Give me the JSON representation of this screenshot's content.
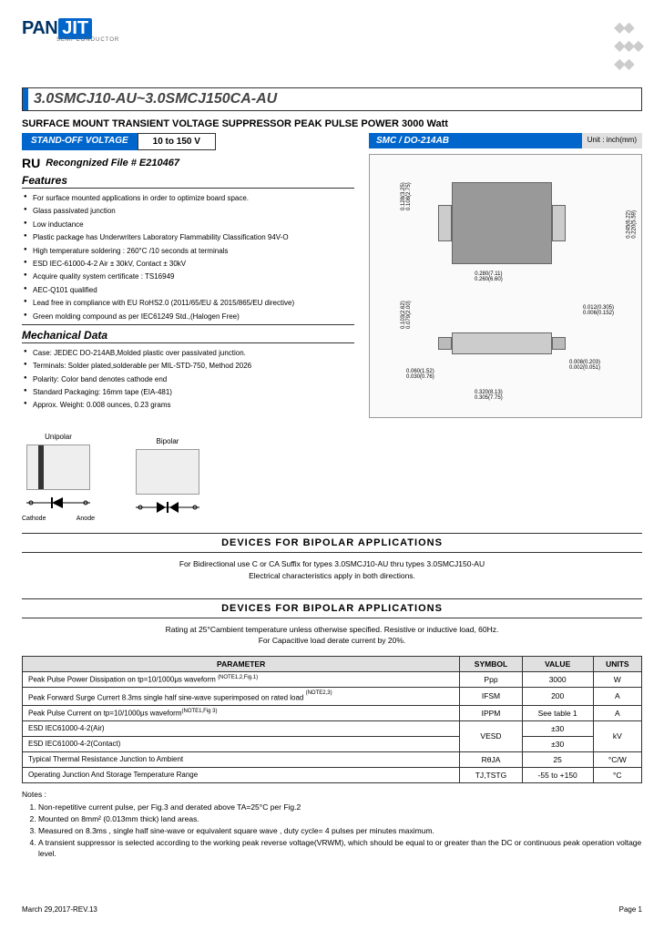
{
  "logo": {
    "pan": "PAN",
    "jit": "JIT",
    "sub": "SEMI\nCONDUCTOR"
  },
  "title": "3.0SMCJ10-AU~3.0SMCJ150CA-AU",
  "subtitle": "SURFACE MOUNT TRANSIENT VOLTAGE SUPPRESSOR PEAK PULSE POWER 3000 Watt",
  "standoff_label": "STAND-OFF VOLTAGE",
  "standoff_value": "10 to 150 V",
  "pkg_name": "SMC / DO-214AB",
  "pkg_unit": "Unit : inch(mm)",
  "recognized": "Recongnized File # E210467",
  "features_title": "Features",
  "features": [
    "For surface mounted applications in order to optimize board space.",
    "Glass passivated junction",
    "Low inductance",
    "Plastic package has Underwriters Laboratory Flammability Classification 94V-O",
    "High temperature soldering : 260°C /10 seconds at terminals",
    "ESD IEC-61000-4-2 Air ± 30kV, Contact ± 30kV",
    "Acquire quality system certificate : TS16949",
    "AEC-Q101 qualified",
    "Lead free in compliance with EU RoHS2.0 (2011/65/EU & 2015/865/EU directive)",
    "Green molding compound as per IEC61249 Std.,(Halogen Free)"
  ],
  "mechdata_title": "Mechanical Data",
  "mechdata": [
    "Case: JEDEC DO-214AB,Molded plastic over passivated junction.",
    "Terminals: Solder plated,solderable per MIL-STD-750, Method 2026",
    "Polarity: Color band denotes cathode end",
    "Standard Packaging: 16mm tape (EIA-481)",
    "Approx. Weight: 0.008 ounces, 0.23 grams"
  ],
  "polarity": {
    "unipolar": "Unipolar",
    "bipolar": "Bipolar",
    "cathode": "Cathode",
    "anode": "Anode"
  },
  "section1_title": "DEVICES  FOR  BIPOLAR  APPLICATIONS",
  "section1_text1": "For Bidirectional use C or CA Suffix for types 3.0SMCJ10-AU thru types 3.0SMCJ150-AU",
  "section1_text2": "Electrical characteristics apply in both directions.",
  "section2_title": "DEVICES  FOR  BIPOLAR  APPLICATIONS",
  "section2_text1": "Rating at 25°Cambient temperature unless otherwise specified. Resistive or inductive load, 60Hz.",
  "section2_text2": "For Capacitive load derate current by 20%.",
  "table": {
    "headers": [
      "PARAMETER",
      "SYMBOL",
      "VALUE",
      "UNITS"
    ],
    "rows": [
      {
        "param": "Peak Pulse Power Dissipation on tp=10/1000μs waveform (NOTE1,2,Fig.1)",
        "symbol": "Ppp",
        "value": "3000",
        "units": "W",
        "rowspan": 1
      },
      {
        "param": "Peak Forward Surge Currert 8.3ms single half sine-wave superimposed on rated load (NOTE2,3)",
        "symbol": "IFSM",
        "value": "200",
        "units": "A",
        "rowspan": 1
      },
      {
        "param": "Peak Pulse Current on tp=10/1000μs waveform(NOTE1,Fig 3)",
        "symbol": "IPPM",
        "value": "See table 1",
        "units": "A",
        "rowspan": 1
      },
      {
        "param": "ESD IEC61000-4-2(Air)",
        "symbol": "VESD",
        "value": "±30",
        "units": "kV",
        "rowspan": 2
      },
      {
        "param": "ESD IEC61000-4-2(Contact)",
        "symbol": "",
        "value": "±30",
        "units": "",
        "rowspan": 0
      },
      {
        "param": "Typical Thermal Resistance Junction to Ambient",
        "symbol": "RθJA",
        "value": "25",
        "units": "°C/W",
        "rowspan": 1
      },
      {
        "param": "Operating Junction And Storage Temperature Range",
        "symbol": "TJ,TSTG",
        "value": "-55 to +150",
        "units": "°C",
        "rowspan": 1
      }
    ]
  },
  "notes_title": "Notes :",
  "notes": [
    "Non-repetitive current pulse, per Fig.3 and derated above TA=25°C per Fig.2",
    "Mounted on 8mm² (0.013mm thick) land areas.",
    "Measured on 8.3ms , single half sine-wave or equivalent square wave , duty cycle= 4 pulses per minutes maximum.",
    "A transient suppressor is selected according to the working peak reverse voltage(VRWM), which should be equal to or greater than the DC or continuous peak operation voltage level."
  ],
  "dims": {
    "d1": "0.128(3.25)",
    "d1b": "0.108(2.75)",
    "d2": "0.245(6.22)",
    "d2b": "0.220(5.59)",
    "d3": "0.280(7.11)",
    "d3b": "0.260(6.60)",
    "d4": "0.103(2.62)",
    "d4b": "0.079(2.00)",
    "d5": "0.012(0.305)",
    "d5b": "0.006(0.152)",
    "d6": "0.060(1.52)",
    "d6b": "0.030(0.76)",
    "d7": "0.008(0.203)",
    "d7b": "0.002(0.051)",
    "d8": "0.320(8.13)",
    "d8b": "0.305(7.75)"
  },
  "footer": {
    "date": "March 29,2017-REV.13",
    "page": "Page 1"
  }
}
